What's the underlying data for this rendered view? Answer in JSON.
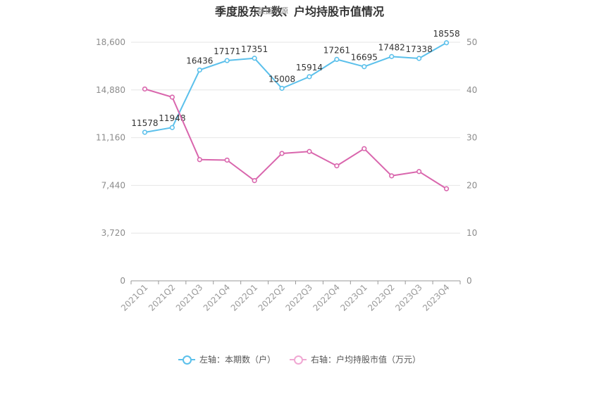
{
  "chart_data": {
    "type": "line",
    "title": "季度股东户数、户均持股市值情况",
    "watermark": "数据来源",
    "categories": [
      "2021Q1",
      "2021Q2",
      "2021Q3",
      "2021Q4",
      "2022Q1",
      "2022Q2",
      "2022Q3",
      "2022Q4",
      "2023Q1",
      "2023Q2",
      "2023Q3",
      "2023Q4"
    ],
    "series": [
      {
        "name": "左轴：本期数（户）",
        "axis": "left",
        "color": "#5bc0eb",
        "values": [
          11578,
          11948,
          16436,
          17171,
          17351,
          15008,
          15914,
          17261,
          16695,
          17482,
          17338,
          18558
        ],
        "labels": [
          "11578",
          "11948",
          "16436",
          "17171",
          "17351",
          "15008",
          "15914",
          "17261",
          "16695",
          "17482",
          "17338",
          "18558"
        ]
      },
      {
        "name": "右轴：户均持股市值（万元）",
        "axis": "right",
        "color": "#d966ad",
        "values": [
          40.2,
          38.5,
          25.4,
          25.3,
          21.0,
          26.7,
          27.1,
          24.1,
          27.7,
          22.0,
          22.9,
          19.3
        ]
      }
    ],
    "left_axis": {
      "ticks": [
        "0",
        "3,720",
        "7,440",
        "11,160",
        "14,880",
        "18,600"
      ],
      "range": [
        0,
        18600
      ]
    },
    "right_axis": {
      "ticks": [
        "0",
        "10",
        "20",
        "30",
        "40",
        "50"
      ],
      "range": [
        0,
        50
      ]
    },
    "grid": true,
    "legend_position": "bottom"
  }
}
